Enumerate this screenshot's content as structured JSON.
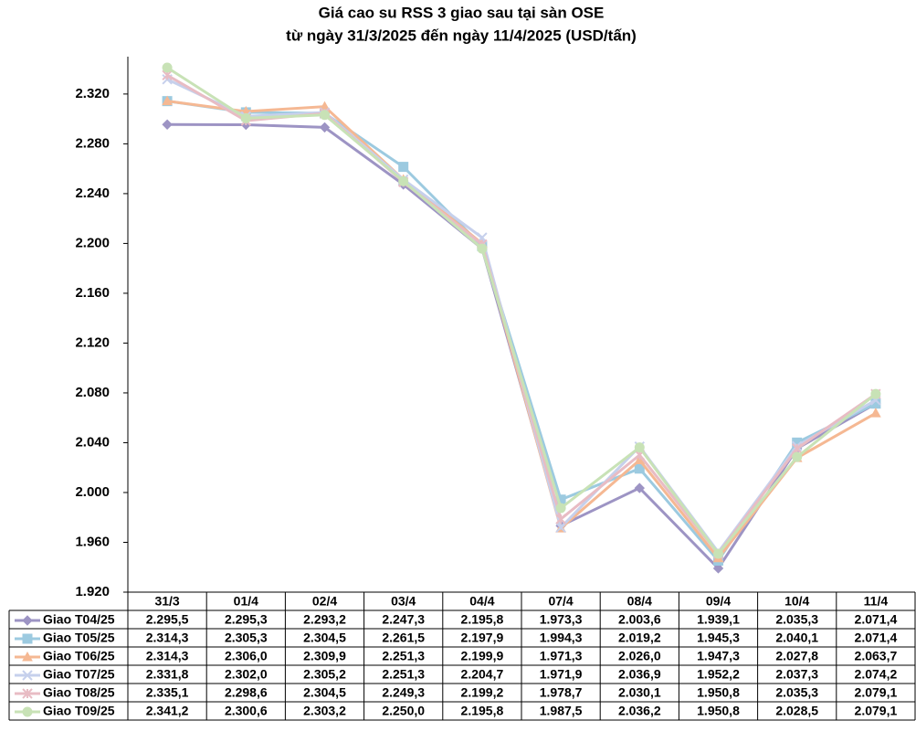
{
  "chart_data": {
    "type": "line",
    "title": "Giá cao su RSS 3 giao sau tại sàn OSE",
    "subtitle": "từ ngày 31/3/2025 đến ngày 11/4/2025 (USD/tấn)",
    "categories": [
      "31/3",
      "01/4",
      "02/4",
      "03/4",
      "04/4",
      "07/4",
      "08/4",
      "09/4",
      "10/4",
      "11/4"
    ],
    "ylim": [
      1920,
      2350
    ],
    "yticks": [
      {
        "value": 1920,
        "label": "1.920"
      },
      {
        "value": 1960,
        "label": "1.960"
      },
      {
        "value": 2000,
        "label": "2.000"
      },
      {
        "value": 2040,
        "label": "2.040"
      },
      {
        "value": 2080,
        "label": "2.080"
      },
      {
        "value": 2120,
        "label": "2.120"
      },
      {
        "value": 2160,
        "label": "2.160"
      },
      {
        "value": 2200,
        "label": "2.200"
      },
      {
        "value": 2240,
        "label": "2.240"
      },
      {
        "value": 2280,
        "label": "2.280"
      },
      {
        "value": 2320,
        "label": "2.320"
      }
    ],
    "grid": false,
    "series": [
      {
        "name": "Giao T04/25",
        "color": "#9d94c4",
        "marker": "diamond",
        "values": [
          2295.5,
          2295.3,
          2293.2,
          2247.3,
          2195.8,
          1973.3,
          2003.6,
          1939.1,
          2035.3,
          2071.4
        ],
        "value_labels": [
          "2.295,5",
          "2.295,3",
          "2.293,2",
          "2.247,3",
          "2.195,8",
          "1.973,3",
          "2.003,6",
          "1.939,1",
          "2.035,3",
          "2.071,4"
        ]
      },
      {
        "name": "Giao T05/25",
        "color": "#9ccae0",
        "marker": "square",
        "values": [
          2314.3,
          2305.3,
          2304.5,
          2261.5,
          2197.9,
          1994.3,
          2019.2,
          1945.3,
          2040.1,
          2071.4
        ],
        "value_labels": [
          "2.314,3",
          "2.305,3",
          "2.304,5",
          "2.261,5",
          "2.197,9",
          "1.994,3",
          "2.019,2",
          "1.945,3",
          "2.040,1",
          "2.071,4"
        ]
      },
      {
        "name": "Giao T06/25",
        "color": "#f5b893",
        "marker": "triangle",
        "values": [
          2314.3,
          2306.0,
          2309.9,
          2251.3,
          2199.9,
          1971.3,
          2026.0,
          1947.3,
          2027.8,
          2063.7
        ],
        "value_labels": [
          "2.314,3",
          "2.306,0",
          "2.309,9",
          "2.251,3",
          "2.199,9",
          "1.971,3",
          "2.026,0",
          "1.947,3",
          "2.027,8",
          "2.063,7"
        ]
      },
      {
        "name": "Giao T07/25",
        "color": "#c6d0ec",
        "marker": "x",
        "values": [
          2331.8,
          2302.0,
          2305.2,
          2251.3,
          2204.7,
          1971.9,
          2036.9,
          1952.2,
          2037.3,
          2074.2
        ],
        "value_labels": [
          "2.331,8",
          "2.302,0",
          "2.305,2",
          "2.251,3",
          "2.204,7",
          "1.971,9",
          "2.036,9",
          "1.952,2",
          "2.037,3",
          "2.074,2"
        ]
      },
      {
        "name": "Giao T08/25",
        "color": "#e8bcc4",
        "marker": "star",
        "values": [
          2335.1,
          2298.6,
          2304.5,
          2249.3,
          2199.2,
          1978.7,
          2030.1,
          1950.8,
          2035.3,
          2079.1
        ],
        "value_labels": [
          "2.335,1",
          "2.298,6",
          "2.304,5",
          "2.249,3",
          "2.199,2",
          "1.978,7",
          "2.030,1",
          "1.950,8",
          "2.035,3",
          "2.079,1"
        ]
      },
      {
        "name": "Giao T09/25",
        "color": "#c8e2b6",
        "marker": "circle",
        "values": [
          2341.2,
          2300.6,
          2303.2,
          2250.0,
          2195.8,
          1987.5,
          2036.2,
          1950.8,
          2028.5,
          2079.1
        ],
        "value_labels": [
          "2.341,2",
          "2.300,6",
          "2.303,2",
          "2.250,0",
          "2.195,8",
          "1.987,5",
          "2.036,2",
          "1.950,8",
          "2.028,5",
          "2.079,1"
        ]
      }
    ]
  }
}
